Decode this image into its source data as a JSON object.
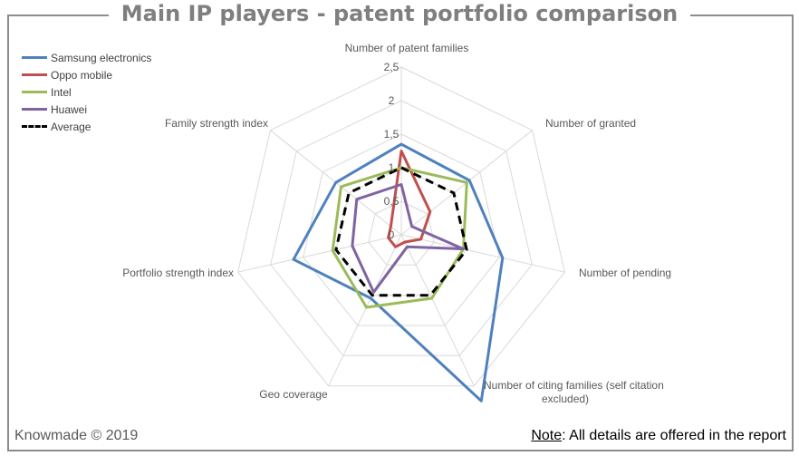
{
  "title": "Main IP players - patent portfolio comparison",
  "footer": {
    "copyright": "Knowmade © 2019",
    "note_label": "Note",
    "note_text": ": All details are offered in the report"
  },
  "chart_data": {
    "type": "radar",
    "axes": [
      "Number of patent families",
      "Number of granted",
      "Number of pending",
      "Number of citing families (self citation excluded)",
      "Geo coverage",
      "Portfolio strength index",
      "Family strength index"
    ],
    "rlim": [
      0,
      2.5
    ],
    "ticks": [
      0,
      0.5,
      1,
      1.5,
      2,
      2.5
    ],
    "tick_labels": [
      "0",
      "0,5",
      "1",
      "1,5",
      "2",
      "2,5"
    ],
    "legend_position": "top-left",
    "series": [
      {
        "name": "Samsung electronics",
        "color": "#4f81bd",
        "dashed": false,
        "values": [
          1.35,
          1.3,
          1.55,
          2.75,
          1.05,
          1.65,
          1.25
        ]
      },
      {
        "name": "Oppo mobile",
        "color": "#c0504d",
        "dashed": false,
        "values": [
          1.25,
          0.55,
          0.3,
          0.12,
          0.2,
          0.2,
          0.2
        ]
      },
      {
        "name": "Intel",
        "color": "#9bbb59",
        "dashed": false,
        "values": [
          1.0,
          1.25,
          0.95,
          1.05,
          1.2,
          1.05,
          1.15
        ]
      },
      {
        "name": "Huawei",
        "color": "#8064a2",
        "dashed": false,
        "values": [
          0.75,
          0.2,
          0.95,
          0.2,
          0.95,
          0.75,
          0.85
        ]
      },
      {
        "name": "Average",
        "color": "#000000",
        "dashed": true,
        "values": [
          1,
          1,
          1,
          1,
          1,
          1,
          1
        ]
      }
    ]
  }
}
